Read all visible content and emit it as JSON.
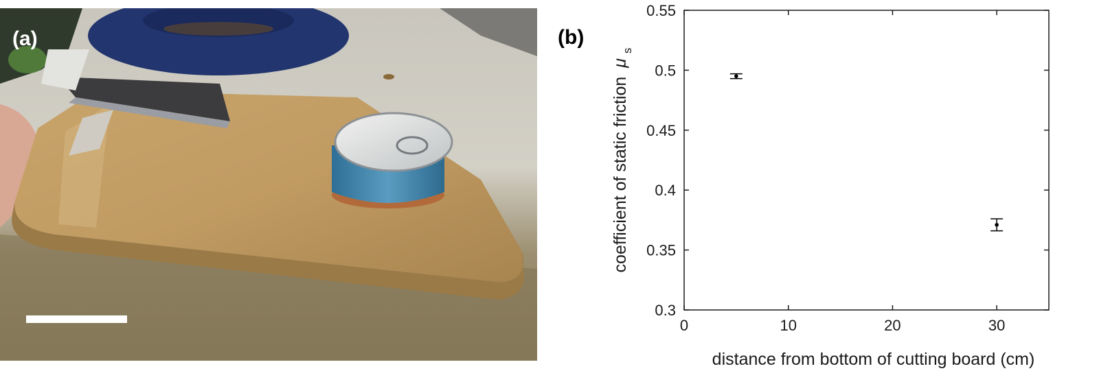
{
  "figure": {
    "panel_a_label": "(a)",
    "panel_b_label": "(b)"
  },
  "chart_data": {
    "type": "scatter",
    "title": "",
    "xlabel": "distance from bottom of cutting board (cm)",
    "ylabel": "coefficient of static friction",
    "ylabel_symbol": "μ",
    "ylabel_subscript": "s",
    "xlim": [
      0,
      35
    ],
    "ylim": [
      0.3,
      0.55
    ],
    "xticks": [
      0,
      10,
      20,
      30
    ],
    "yticks": [
      0.3,
      0.35,
      0.4,
      0.45,
      0.5,
      0.55
    ],
    "ytick_labels": [
      "0.3",
      "0.35",
      "0.4",
      "0.45",
      "0.5",
      "0.55"
    ],
    "grid": false,
    "series": [
      {
        "x": [
          5,
          30
        ],
        "y": [
          0.495,
          0.371
        ],
        "yerr": [
          0.002,
          0.005
        ]
      }
    ],
    "colors": {
      "marker": "#000000",
      "axis": "#1a1a1a"
    }
  }
}
